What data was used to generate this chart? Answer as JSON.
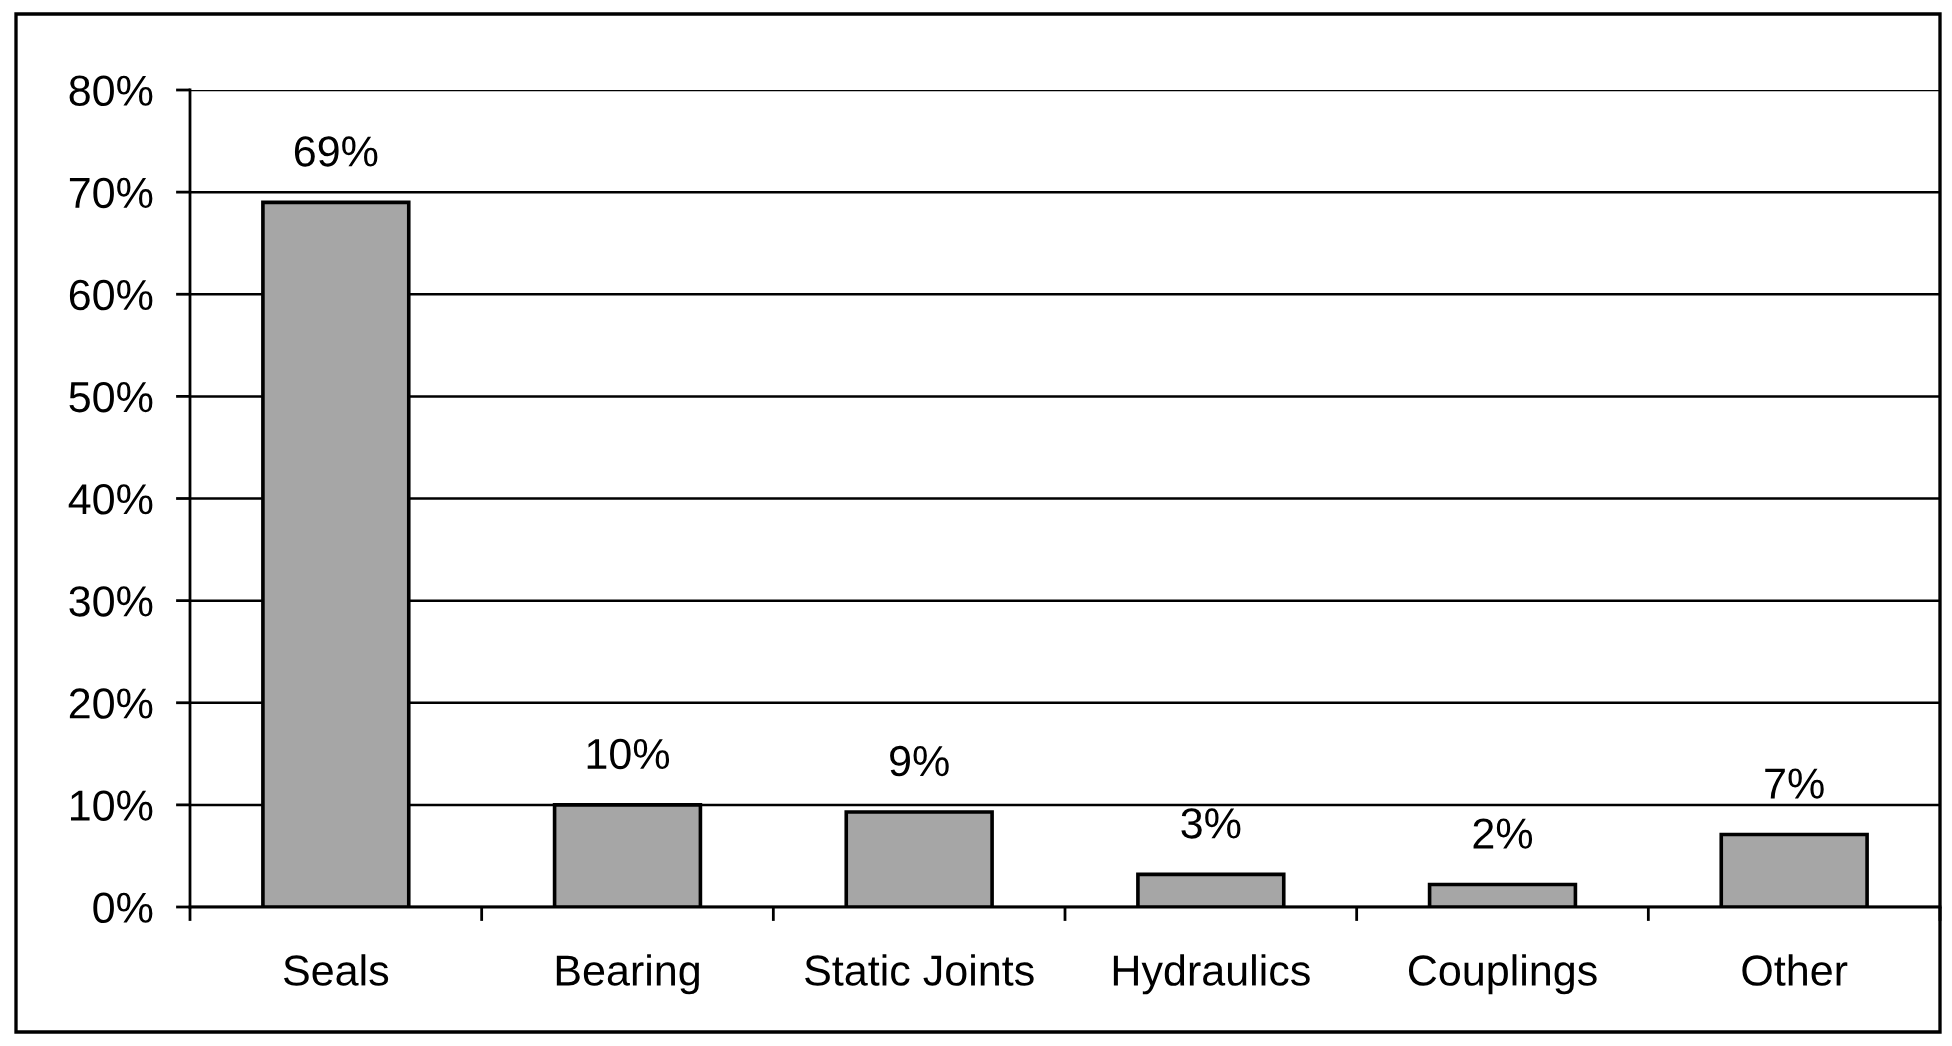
{
  "chart_data": {
    "type": "bar",
    "categories": [
      "Seals",
      "Bearing",
      "Static Joints",
      "Hydraulics",
      "Couplings",
      "Other"
    ],
    "values": [
      69,
      10,
      9.3,
      3.2,
      2.2,
      7.1
    ],
    "value_labels": [
      "69%",
      "10%",
      "9%",
      "3%",
      "2%",
      "7%"
    ],
    "color": "#a6a6a6",
    "ylim": [
      0,
      80
    ],
    "yticks": [
      {
        "value": 0,
        "label": "0%"
      },
      {
        "value": 10,
        "label": "10%"
      },
      {
        "value": 20,
        "label": "20%"
      },
      {
        "value": 30,
        "label": "30%"
      },
      {
        "value": 40,
        "label": "40%"
      },
      {
        "value": 50,
        "label": "50%"
      },
      {
        "value": 60,
        "label": "60%"
      },
      {
        "value": 70,
        "label": "70%"
      },
      {
        "value": 80,
        "label": "80%"
      }
    ],
    "grid": "y"
  }
}
